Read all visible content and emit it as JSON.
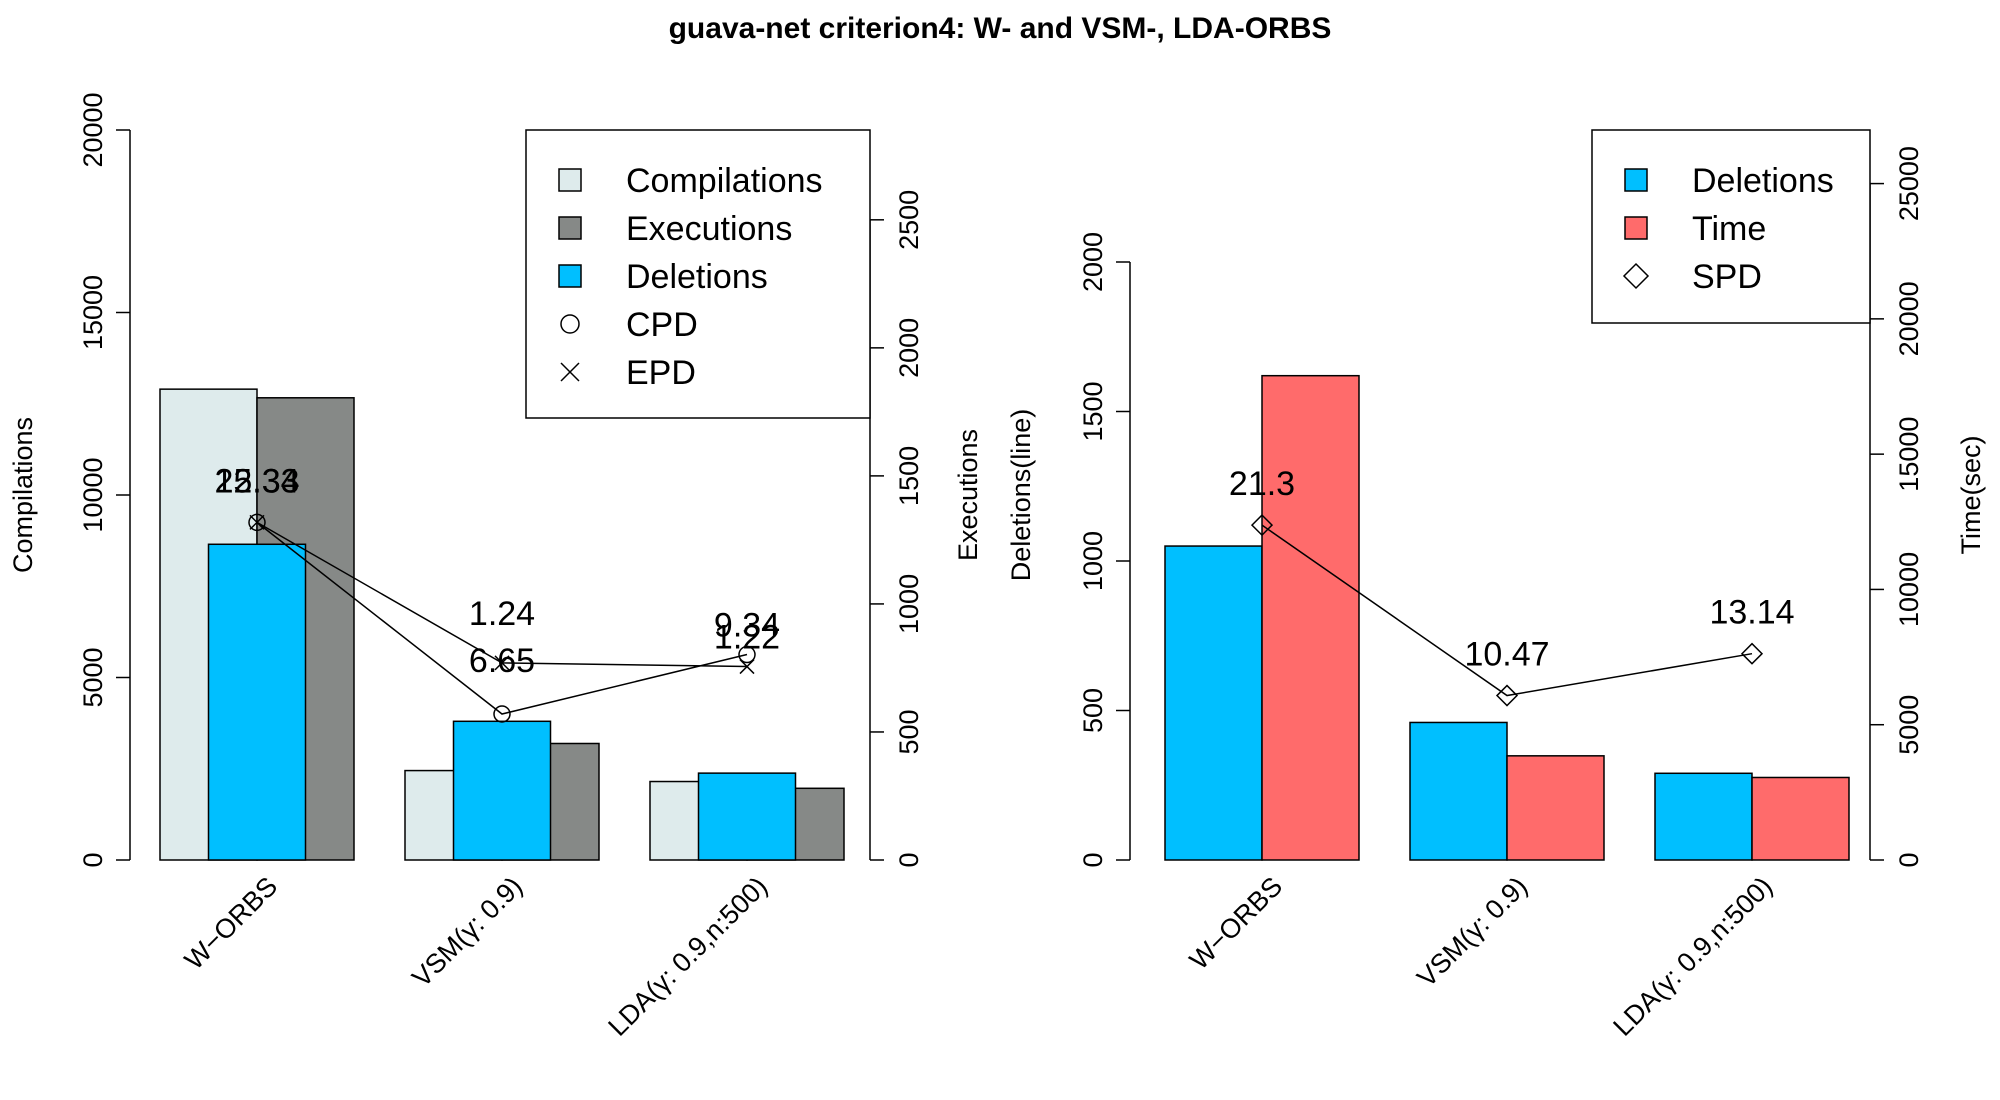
{
  "title": "guava-net criterion4: W- and VSM-, LDA-ORBS",
  "colors": {
    "compilations": "#deebec",
    "executions": "#868987",
    "deletions": "#00bfff",
    "time": "#ff6b6b"
  },
  "chart_data": [
    {
      "type": "bar",
      "categories": [
        "W−ORBS",
        "VSM(γ: 0.9)",
        "LDA(γ: 0.9,n:500)"
      ],
      "ylabel": "Compilations",
      "y2label": "Executions",
      "ylim": [
        0,
        20000
      ],
      "y2lim": [
        0,
        2800
      ],
      "yticks": [
        0,
        5000,
        10000,
        15000,
        20000
      ],
      "y2ticks": [
        0,
        500,
        1000,
        1500,
        2000,
        2500
      ],
      "series": [
        {
          "name": "Compilations",
          "axis": "left",
          "values": [
            12900,
            2450,
            2150
          ]
        },
        {
          "name": "Executions",
          "axis": "right",
          "values": [
            1805,
            455,
            280
          ]
        },
        {
          "name": "Deletions",
          "axis": "left",
          "values": [
            8650,
            3800,
            2380
          ]
        }
      ],
      "lines": [
        {
          "name": "CPD",
          "marker": "circle",
          "axis": "left",
          "values": [
            9250,
            4000,
            5630
          ],
          "labels": [
            "12.34",
            "6.65",
            "9.34"
          ]
        },
        {
          "name": "EPD",
          "marker": "x",
          "axis": "left",
          "values": [
            9250,
            5400,
            5300
          ],
          "labels": [
            "25.33",
            "1.24",
            "1.22"
          ]
        }
      ],
      "legend": [
        "Compilations",
        "Executions",
        "Deletions",
        "CPD",
        "EPD"
      ],
      "legend_position": "top-right"
    },
    {
      "type": "bar",
      "categories": [
        "W−ORBS",
        "VSM(γ: 0.9)",
        "LDA(γ: 0.9,n:500)"
      ],
      "ylabel": "Deletions(line)",
      "y2label": "Time(sec)",
      "ylim": [
        0,
        2000
      ],
      "y2lim": [
        0,
        26500
      ],
      "yticks": [
        0,
        500,
        1000,
        1500,
        2000
      ],
      "y2ticks": [
        0,
        5000,
        10000,
        15000,
        20000,
        25000
      ],
      "series": [
        {
          "name": "Deletions",
          "axis": "left",
          "values": [
            1050,
            460,
            290
          ]
        },
        {
          "name": "Time",
          "axis": "right",
          "values": [
            17900,
            3850,
            3050
          ]
        }
      ],
      "lines": [
        {
          "name": "SPD",
          "marker": "diamond",
          "axis": "left",
          "values": [
            1120,
            550,
            690
          ],
          "labels": [
            "21.3",
            "10.47",
            "13.14"
          ]
        }
      ],
      "legend": [
        "Deletions",
        "Time",
        "SPD"
      ],
      "legend_position": "top-right"
    }
  ]
}
